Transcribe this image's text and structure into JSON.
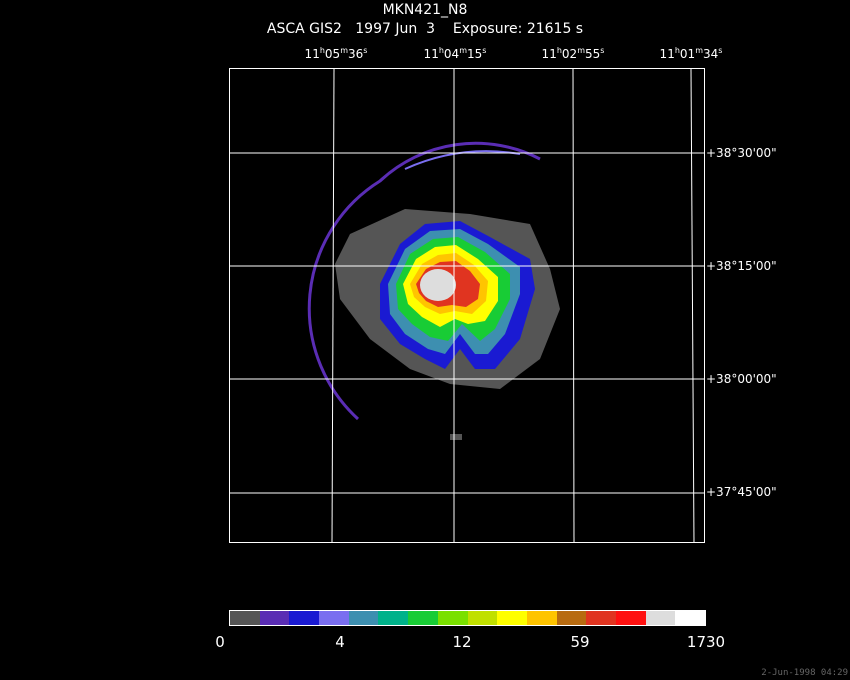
{
  "title": "MKN421_N8",
  "subtitle": "ASCA GIS2   1997 Jun  3    Exposure: 21615 s",
  "ra_labels": [
    {
      "h": "11",
      "m": "05",
      "s": "36"
    },
    {
      "h": "11",
      "m": "04",
      "s": "15"
    },
    {
      "h": "11",
      "m": "02",
      "s": "55"
    },
    {
      "h": "11",
      "m": "01",
      "s": "34"
    }
  ],
  "dec_labels": [
    "+38°30'00\"",
    "+38°15'00\"",
    "+38°00'00\"",
    "+37°45'00\""
  ],
  "colorbar": {
    "colors": [
      "#555555",
      "#5a2db4",
      "#1a1ad2",
      "#7a6ef0",
      "#3d8fb0",
      "#00b28a",
      "#18cc35",
      "#7ae000",
      "#c0e000",
      "#ffff00",
      "#ffc400",
      "#b86b10",
      "#e03420",
      "#ff1010",
      "#dddddd",
      "#ffffff"
    ],
    "labels": [
      "0",
      "4",
      "12",
      "59",
      "1730"
    ]
  },
  "timestamp": "2-Jun-1998 04:29"
}
